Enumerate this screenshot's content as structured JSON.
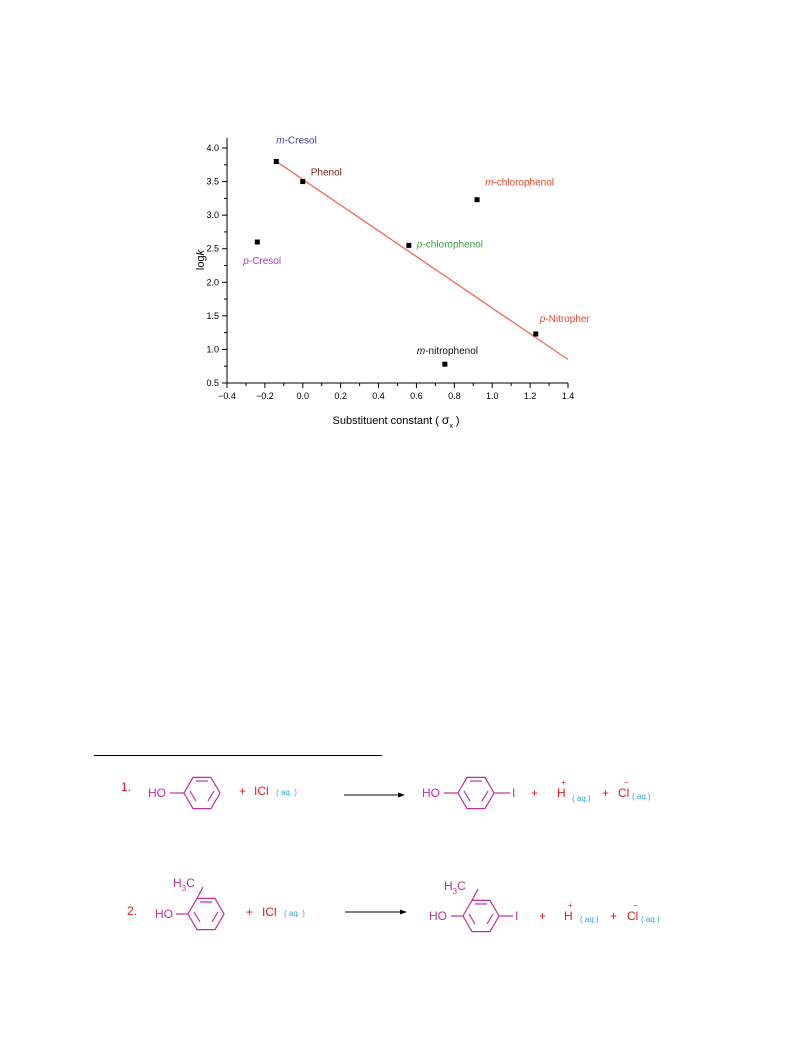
{
  "figure": {
    "colors": {
      "fit_line": "#f06a5a",
      "m_cresol": "#3f3fa0",
      "phenol": "#7a1b10",
      "m_chlorophenol": "#e8462a",
      "p_chlorophenol": "#3aa640",
      "p_cresol": "#b43fb4",
      "p_nitrophenol": "#e8462a",
      "m_nitrophenol": "#111111",
      "points": "#000000"
    },
    "chart_data": {
      "type": "scatter",
      "xlabel_prefix": "Substituent constant (",
      "xlabel_symbol": "σ",
      "xlabel_sub": "x",
      "xlabel_suffix": ")",
      "ylabel_prefix": "log",
      "ylabel_var": "k",
      "xlim": [
        -0.4,
        1.4
      ],
      "ylim": [
        0.5,
        4.2
      ],
      "xticks": [
        "-0.4",
        "-0.2",
        "0.0",
        "0.2",
        "0.4",
        "0.6",
        "0.8",
        "1.0",
        "1.2",
        "1.4"
      ],
      "yticks": [
        "0.5",
        "1.0",
        "1.5",
        "2.0",
        "2.5",
        "3.0",
        "3.5",
        "4.0"
      ],
      "points": [
        {
          "italic": "m",
          "rest": "-Cresol",
          "x": -0.14,
          "y": 3.8
        },
        {
          "italic": "",
          "rest": "Phenol",
          "x": 0.0,
          "y": 3.5
        },
        {
          "italic": "m",
          "rest": "-chlorophenol",
          "x": 0.92,
          "y": 3.23
        },
        {
          "italic": "p",
          "rest": "-chlorophenol",
          "x": 0.56,
          "y": 2.55
        },
        {
          "italic": "p",
          "rest": "-Cresol",
          "x": -0.24,
          "y": 2.6
        },
        {
          "italic": "p",
          "rest": "-Nitrophenol",
          "x": 1.23,
          "y": 1.23
        },
        {
          "italic": "m",
          "rest": "-nitrophenol",
          "x": 0.75,
          "y": 0.78
        }
      ],
      "fit_line": {
        "x": [
          -0.14,
          1.4
        ],
        "y": [
          3.8,
          0.85
        ]
      }
    }
  },
  "reactions": {
    "colors": {
      "molecule": "#c0309c",
      "reagent": "#e0181e",
      "state": "#2aa7d0",
      "arrow": "#000000"
    },
    "r1": {
      "number": "1.",
      "ho": "HO",
      "plus": "+",
      "reagent": "ICl",
      "state": "( aq. )",
      "prod_ho": "HO",
      "iodo": "I",
      "plus2": "+",
      "proton": "H",
      "proton_charge": "+",
      "proton_state": "( aq.)",
      "plus3": "+",
      "chloride": "Cl",
      "chloride_charge": "−",
      "chloride_state": "( aq.)"
    },
    "r2": {
      "number": "2.",
      "methyl_h": "H",
      "methyl_sub": "3",
      "methyl_c": "C",
      "ho": "HO",
      "plus": "+",
      "reagent": "ICl",
      "state": "( aq. )",
      "prod_ho": "HO",
      "iodo": "I",
      "plus2": "+",
      "proton": "H",
      "proton_charge": "+",
      "proton_state": "( aq.)",
      "plus3": "+",
      "chloride": "Cl",
      "chloride_charge": "−",
      "chloride_state": "( aq.)"
    }
  }
}
